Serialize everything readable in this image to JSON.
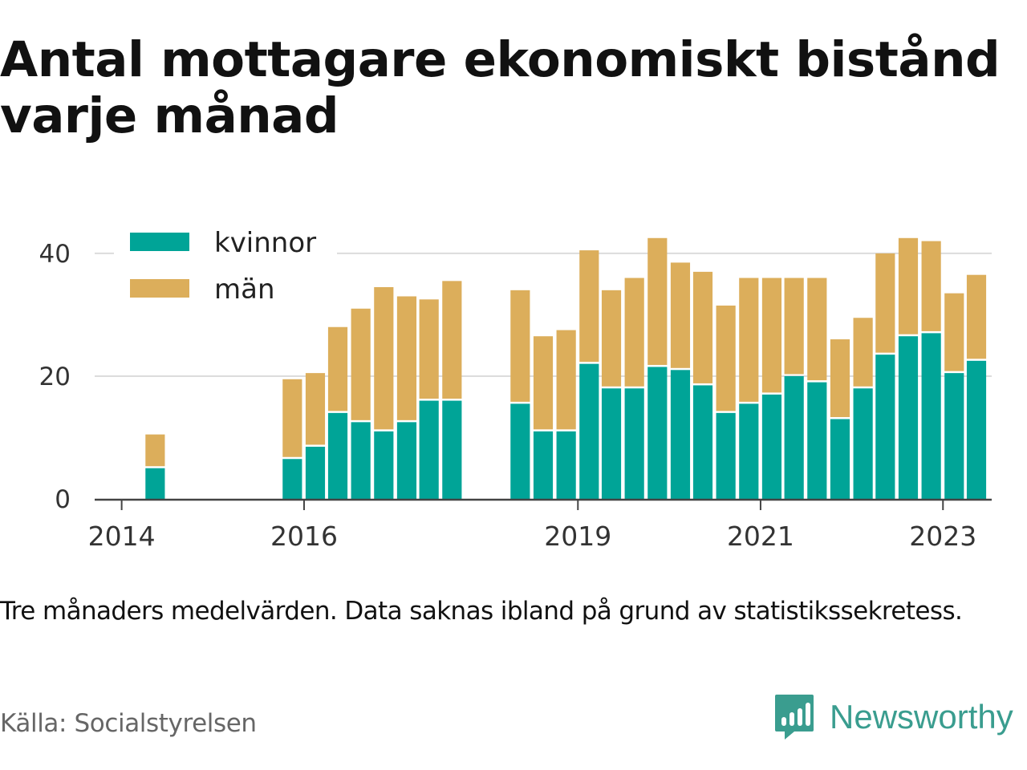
{
  "title": "Antal mottagare ekonomiskt bistånd varje månad",
  "note": "Tre månaders medelvärden. Data saknas ibland på grund av statistikssekretess.",
  "source": "Källa: Socialstyrelsen",
  "brand": {
    "name": "Newsworthy",
    "icon": "newsworthy-logo-icon",
    "color": "#3a9d8f"
  },
  "chart_data": {
    "type": "bar",
    "stacked": true,
    "x_axis": {
      "type": "time",
      "tick_labels": [
        "2014",
        "2016",
        "2019",
        "2021",
        "2023"
      ],
      "range": [
        "2013-09-15",
        "2023-07-15"
      ]
    },
    "y_axis": {
      "tick_labels": [
        "0",
        "20",
        "40"
      ],
      "range": [
        0,
        46
      ],
      "grid": true
    },
    "legend_position": "top-left",
    "x": [
      "2014-05",
      "2015-11",
      "2016-02",
      "2016-05",
      "2016-08",
      "2016-11",
      "2017-02",
      "2017-05",
      "2017-08",
      "2018-05",
      "2018-08",
      "2018-11",
      "2019-02",
      "2019-05",
      "2019-08",
      "2019-11",
      "2020-02",
      "2020-05",
      "2020-08",
      "2020-11",
      "2021-02",
      "2021-05",
      "2021-08",
      "2021-11",
      "2022-02",
      "2022-05",
      "2022-08",
      "2022-11",
      "2023-02",
      "2023-05"
    ],
    "series": [
      {
        "name": "kvinnor",
        "color": "#00a497",
        "values": [
          5,
          6.5,
          8.5,
          14,
          12.5,
          11,
          12.5,
          16,
          16,
          15.5,
          11,
          11,
          22,
          18,
          18,
          21.5,
          21,
          18.5,
          14,
          15.5,
          17,
          20,
          19,
          13,
          18,
          23.5,
          26.5,
          27,
          20.5,
          22.5
        ]
      },
      {
        "name": "män",
        "color": "#dcae5b",
        "values": [
          5.5,
          13,
          12,
          14,
          18.5,
          23.5,
          20.5,
          16.5,
          19.5,
          18.5,
          15.5,
          16.5,
          18.5,
          16,
          18,
          21,
          17.5,
          18.5,
          17.5,
          20.5,
          19,
          16,
          17,
          13,
          11.5,
          16.5,
          16,
          15,
          13,
          14
        ]
      }
    ]
  }
}
